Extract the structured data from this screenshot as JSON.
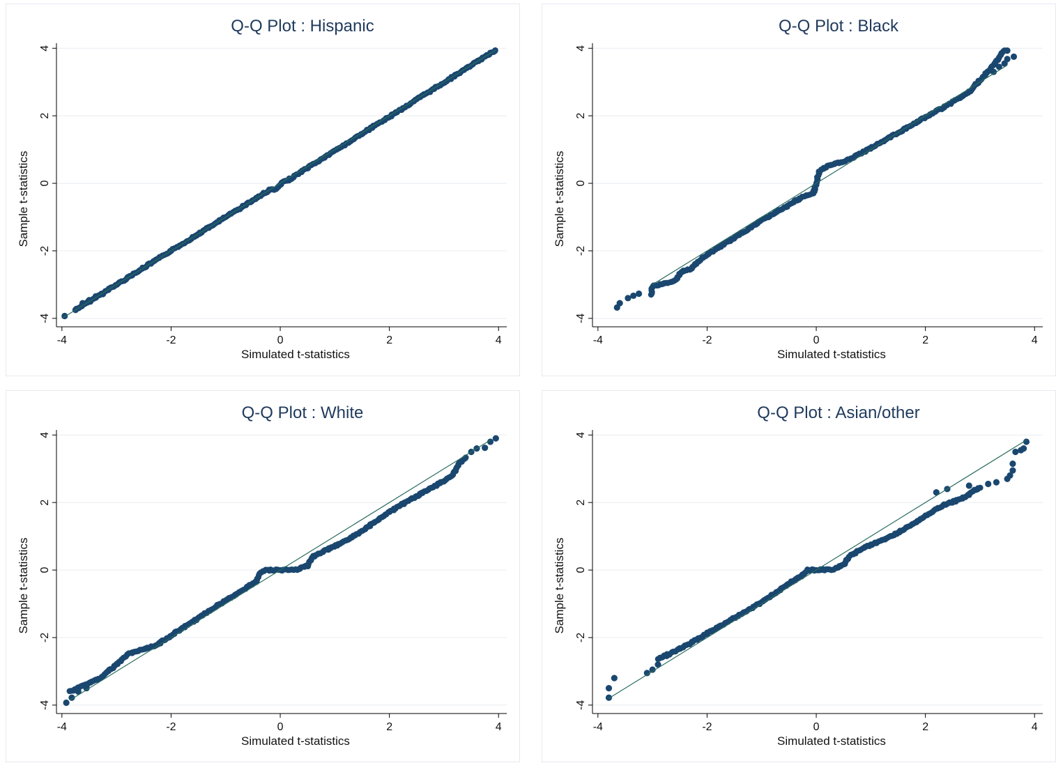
{
  "colors": {
    "point": "#1a476f",
    "line": "#2a6b5e",
    "axis": "#000000",
    "grid": "#e8ecf0",
    "title": "#1f3a5c"
  },
  "chart_data": [
    {
      "type": "scatter",
      "title": "Q-Q Plot : Hispanic",
      "xlabel": "Simulated t-statistics",
      "ylabel": "Sample t-statistics",
      "xticks": [
        -4,
        -2,
        0,
        2,
        4
      ],
      "yticks": [
        -4,
        -2,
        0,
        2,
        4
      ],
      "xlim": [
        -4.1,
        4.15
      ],
      "ylim": [
        -4.25,
        4.15
      ],
      "grid": true,
      "reference_line": {
        "from": [
          -4.0,
          -4.0
        ],
        "to": [
          3.95,
          3.95
        ]
      },
      "curve": [
        [
          -3.75,
          -3.75
        ],
        [
          -0.2,
          -0.2
        ],
        [
          -0.06,
          -0.16
        ],
        [
          0.0,
          -0.05
        ],
        [
          0.04,
          0.02
        ],
        [
          0.15,
          0.1
        ],
        [
          3.95,
          3.95
        ]
      ],
      "outliers": [
        [
          -3.95,
          -3.93
        ],
        [
          -3.75,
          -3.75
        ],
        [
          -3.62,
          -3.55
        ],
        [
          -3.5,
          -3.46
        ],
        [
          -3.38,
          -3.35
        ],
        [
          -3.25,
          -3.28
        ]
      ]
    },
    {
      "type": "scatter",
      "title": "Q-Q Plot : Black",
      "xlabel": "Simulated t-statistics",
      "ylabel": "Sample t-statistics",
      "xticks": [
        -4,
        -2,
        0,
        2,
        4
      ],
      "yticks": [
        -4,
        -2,
        0,
        2,
        4
      ],
      "xlim": [
        -4.1,
        4.15
      ],
      "ylim": [
        -4.25,
        4.15
      ],
      "grid": true,
      "reference_line": {
        "from": [
          -3.0,
          -3.0
        ],
        "to": [
          3.5,
          3.5
        ]
      },
      "curve": [
        [
          -3.02,
          -3.28
        ],
        [
          -3.0,
          -3.05
        ],
        [
          -2.6,
          -2.9
        ],
        [
          -2.45,
          -2.6
        ],
        [
          -2.3,
          -2.55
        ],
        [
          -2.1,
          -2.22
        ],
        [
          -1.0,
          -1.1
        ],
        [
          -0.3,
          -0.45
        ],
        [
          -0.05,
          -0.28
        ],
        [
          0.0,
          0.0
        ],
        [
          0.05,
          0.35
        ],
        [
          0.2,
          0.5
        ],
        [
          0.5,
          0.65
        ],
        [
          0.7,
          0.78
        ],
        [
          1.5,
          1.5
        ],
        [
          2.0,
          1.95
        ],
        [
          2.6,
          2.5
        ],
        [
          2.8,
          2.7
        ],
        [
          3.0,
          3.05
        ],
        [
          3.2,
          3.4
        ],
        [
          3.45,
          3.95
        ]
      ],
      "outliers": [
        [
          -3.65,
          -3.68
        ],
        [
          -3.6,
          -3.55
        ],
        [
          -3.45,
          -3.4
        ],
        [
          -3.35,
          -3.33
        ],
        [
          -3.25,
          -3.27
        ],
        [
          3.25,
          3.3
        ],
        [
          3.35,
          3.45
        ],
        [
          3.45,
          3.55
        ],
        [
          3.5,
          3.68
        ],
        [
          3.62,
          3.75
        ],
        [
          3.5,
          3.93
        ]
      ]
    },
    {
      "type": "scatter",
      "title": "Q-Q Plot : White",
      "xlabel": "Simulated t-statistics",
      "ylabel": "Sample t-statistics",
      "xticks": [
        -4,
        -2,
        0,
        2,
        4
      ],
      "yticks": [
        -4,
        -2,
        0,
        2,
        4
      ],
      "xlim": [
        -4.1,
        4.15
      ],
      "ylim": [
        -4.25,
        4.15
      ],
      "grid": true,
      "reference_line": {
        "from": [
          -3.85,
          -3.85
        ],
        "to": [
          3.85,
          3.85
        ]
      },
      "curve": [
        [
          -3.85,
          -3.6
        ],
        [
          -3.3,
          -3.2
        ],
        [
          -3.0,
          -2.8
        ],
        [
          -2.8,
          -2.5
        ],
        [
          -2.3,
          -2.25
        ],
        [
          -1.0,
          -0.9
        ],
        [
          -0.6,
          -0.5
        ],
        [
          -0.45,
          -0.35
        ],
        [
          -0.35,
          -0.05
        ],
        [
          -0.25,
          0.0
        ],
        [
          0.0,
          0.0
        ],
        [
          0.3,
          0.02
        ],
        [
          0.5,
          0.12
        ],
        [
          0.6,
          0.4
        ],
        [
          0.75,
          0.52
        ],
        [
          1.0,
          0.7
        ],
        [
          1.5,
          1.15
        ],
        [
          2.0,
          1.72
        ],
        [
          2.4,
          2.1
        ],
        [
          2.9,
          2.55
        ],
        [
          3.15,
          2.8
        ],
        [
          3.3,
          3.2
        ],
        [
          3.4,
          3.35
        ]
      ],
      "outliers": [
        [
          -3.92,
          -3.93
        ],
        [
          -3.82,
          -3.78
        ],
        [
          -3.7,
          -3.6
        ],
        [
          -3.55,
          -3.5
        ],
        [
          3.5,
          3.5
        ],
        [
          3.6,
          3.6
        ],
        [
          3.75,
          3.62
        ],
        [
          3.85,
          3.8
        ],
        [
          3.95,
          3.9
        ]
      ]
    },
    {
      "type": "scatter",
      "title": "Q-Q Plot : Asian/other",
      "xlabel": "Simulated t-statistics",
      "ylabel": "Sample t-statistics",
      "xticks": [
        -4,
        -2,
        0,
        2,
        4
      ],
      "yticks": [
        -4,
        -2,
        0,
        2,
        4
      ],
      "xlim": [
        -4.1,
        4.15
      ],
      "ylim": [
        -4.25,
        4.15
      ],
      "grid": true,
      "reference_line": {
        "from": [
          -3.8,
          -3.8
        ],
        "to": [
          3.85,
          3.85
        ]
      },
      "curve": [
        [
          -2.9,
          -2.65
        ],
        [
          -2.4,
          -2.25
        ],
        [
          -1.0,
          -0.95
        ],
        [
          -0.45,
          -0.35
        ],
        [
          -0.3,
          -0.2
        ],
        [
          -0.15,
          0.0
        ],
        [
          0.0,
          0.0
        ],
        [
          0.3,
          0.02
        ],
        [
          0.5,
          0.15
        ],
        [
          0.6,
          0.4
        ],
        [
          0.8,
          0.6
        ],
        [
          1.5,
          1.1
        ],
        [
          2.0,
          1.6
        ],
        [
          2.3,
          1.9
        ],
        [
          2.65,
          2.1
        ],
        [
          3.0,
          2.45
        ]
      ],
      "outliers": [
        [
          -3.8,
          -3.78
        ],
        [
          -3.8,
          -3.5
        ],
        [
          -3.7,
          -3.2
        ],
        [
          -3.1,
          -3.05
        ],
        [
          -3.0,
          -2.95
        ],
        [
          -2.9,
          -2.8
        ],
        [
          2.2,
          2.3
        ],
        [
          2.4,
          2.4
        ],
        [
          2.8,
          2.5
        ],
        [
          3.15,
          2.55
        ],
        [
          3.3,
          2.6
        ],
        [
          3.5,
          2.7
        ],
        [
          3.55,
          2.8
        ],
        [
          3.6,
          2.95
        ],
        [
          3.6,
          3.15
        ],
        [
          3.65,
          3.5
        ],
        [
          3.75,
          3.55
        ],
        [
          3.8,
          3.6
        ],
        [
          3.85,
          3.8
        ]
      ]
    }
  ]
}
